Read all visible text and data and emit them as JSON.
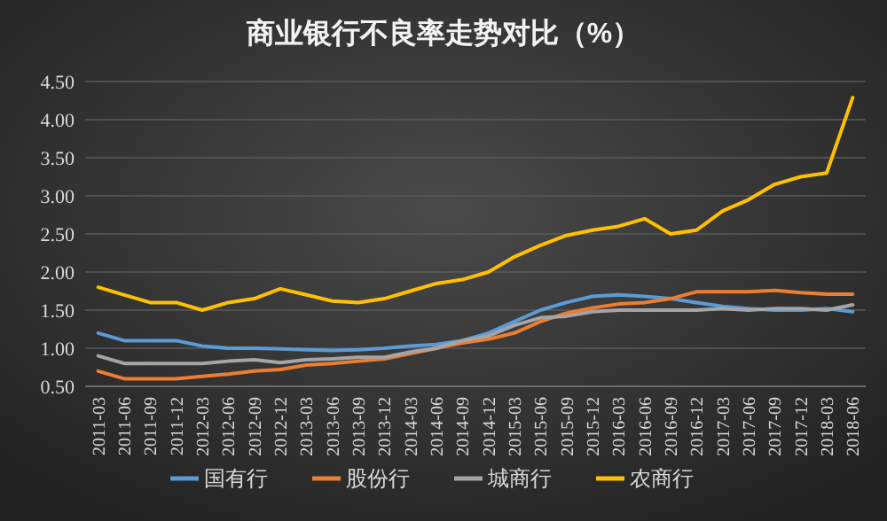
{
  "chart_data": {
    "type": "line",
    "title": "商业银行不良率走势对比（%）",
    "categories": [
      "2011-03",
      "2011-06",
      "2011-09",
      "2011-12",
      "2012-03",
      "2012-06",
      "2012-09",
      "2012-12",
      "2013-03",
      "2013-06",
      "2013-09",
      "2013-12",
      "2014-03",
      "2014-06",
      "2014-09",
      "2014-12",
      "2015-03",
      "2015-06",
      "2015-09",
      "2015-12",
      "2016-03",
      "2016-06",
      "2016-09",
      "2016-12",
      "2017-03",
      "2017-06",
      "2017-09",
      "2017-12",
      "2018-03",
      "2018-06"
    ],
    "series": [
      {
        "name": "国有行",
        "color": "#5b9bd5",
        "values": [
          1.2,
          1.1,
          1.1,
          1.1,
          1.03,
          1.0,
          1.0,
          0.99,
          0.98,
          0.97,
          0.98,
          1.0,
          1.03,
          1.05,
          1.1,
          1.2,
          1.35,
          1.5,
          1.6,
          1.68,
          1.7,
          1.68,
          1.65,
          1.6,
          1.55,
          1.52,
          1.5,
          1.5,
          1.52,
          1.48
        ]
      },
      {
        "name": "股份行",
        "color": "#ed7d31",
        "values": [
          0.7,
          0.6,
          0.6,
          0.6,
          0.63,
          0.66,
          0.7,
          0.72,
          0.78,
          0.8,
          0.83,
          0.86,
          0.93,
          1.0,
          1.07,
          1.12,
          1.2,
          1.35,
          1.46,
          1.53,
          1.58,
          1.6,
          1.65,
          1.74,
          1.74,
          1.74,
          1.76,
          1.73,
          1.71,
          1.71
        ]
      },
      {
        "name": "城商行",
        "color": "#a5a5a5",
        "values": [
          0.9,
          0.8,
          0.8,
          0.8,
          0.8,
          0.83,
          0.85,
          0.81,
          0.85,
          0.86,
          0.88,
          0.88,
          0.95,
          1.0,
          1.1,
          1.16,
          1.3,
          1.4,
          1.42,
          1.48,
          1.5,
          1.5,
          1.5,
          1.5,
          1.52,
          1.5,
          1.52,
          1.52,
          1.5,
          1.57
        ]
      },
      {
        "name": "农商行",
        "color": "#ffc000",
        "values": [
          1.8,
          1.7,
          1.6,
          1.6,
          1.5,
          1.6,
          1.65,
          1.78,
          1.7,
          1.62,
          1.6,
          1.65,
          1.75,
          1.85,
          1.9,
          2.0,
          2.2,
          2.35,
          2.48,
          2.55,
          2.6,
          2.7,
          2.5,
          2.55,
          2.8,
          2.95,
          3.15,
          3.25,
          3.3,
          4.29
        ]
      }
    ],
    "ylim": [
      0.5,
      4.5
    ],
    "yticks": [
      {
        "value": 0.5,
        "label": "0.50"
      },
      {
        "value": 1.0,
        "label": "1.00"
      },
      {
        "value": 1.5,
        "label": "1.50"
      },
      {
        "value": 2.0,
        "label": "2.00"
      },
      {
        "value": 2.5,
        "label": "2.50"
      },
      {
        "value": 3.0,
        "label": "3.00"
      },
      {
        "value": 3.5,
        "label": "3.50"
      },
      {
        "value": 4.0,
        "label": "4.00"
      },
      {
        "value": 4.5,
        "label": "4.50"
      }
    ],
    "grid": "y",
    "legend": "bottom",
    "marker": "none",
    "line_style": "solid"
  }
}
